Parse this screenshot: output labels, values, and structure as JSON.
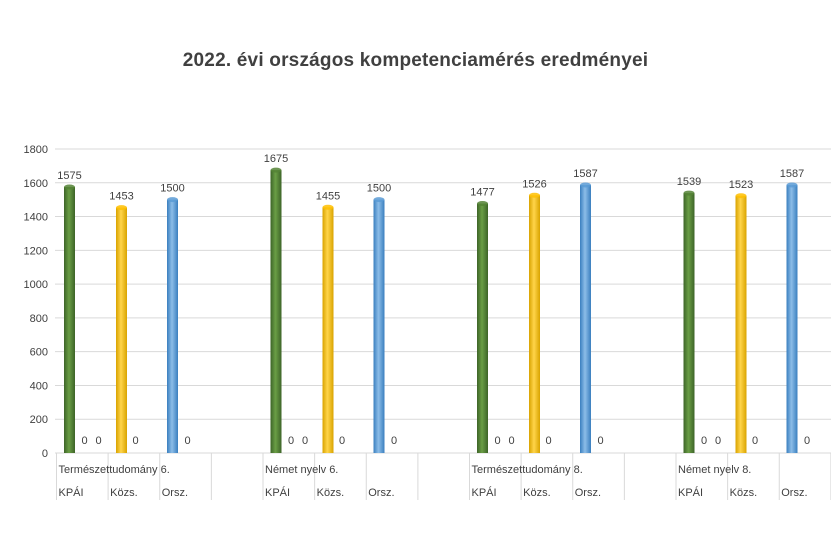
{
  "chart_data": {
    "type": "bar",
    "title": "2022. évi országos kompetenciamérés eredményei",
    "ylim": [
      0,
      1800
    ],
    "yticks": [
      0,
      200,
      400,
      600,
      800,
      1000,
      1200,
      1400,
      1600,
      1800
    ],
    "grid": true,
    "colors": {
      "green": "#548235",
      "yellow": "#ffc000",
      "blue": "#5b9bd5"
    },
    "groups": [
      {
        "values": [
          1575,
          0,
          0,
          1453,
          0,
          1500,
          0
        ],
        "cat_line1": [
          "Természettudomány 6.",
          "",
          ""
        ],
        "cat_line2": [
          "KPÁI",
          "Közs.",
          "Orsz."
        ]
      },
      {
        "values": [
          1675,
          0,
          0,
          1455,
          0,
          1500,
          0
        ],
        "cat_line1": [
          "Német nyelv 6.",
          "",
          ""
        ],
        "cat_line2": [
          "KPÁI",
          "Közs.",
          "Orsz."
        ]
      },
      {
        "values": [
          1477,
          0,
          0,
          1526,
          0,
          1587,
          0
        ],
        "cat_line1": [
          "Természettudomány 8.",
          "",
          ""
        ],
        "cat_line2": [
          "KPÁI",
          "Közs.",
          "Orsz."
        ]
      },
      {
        "values": [
          1539,
          0,
          0,
          1523,
          0,
          1587,
          0
        ],
        "cat_line1": [
          "Német nyelv 8.",
          "",
          ""
        ],
        "cat_line2": [
          "KPÁI",
          "Közs.",
          "Orsz."
        ]
      }
    ],
    "bar_colors": [
      "green",
      "green",
      "green",
      "yellow",
      "yellow",
      "blue",
      "blue"
    ]
  }
}
